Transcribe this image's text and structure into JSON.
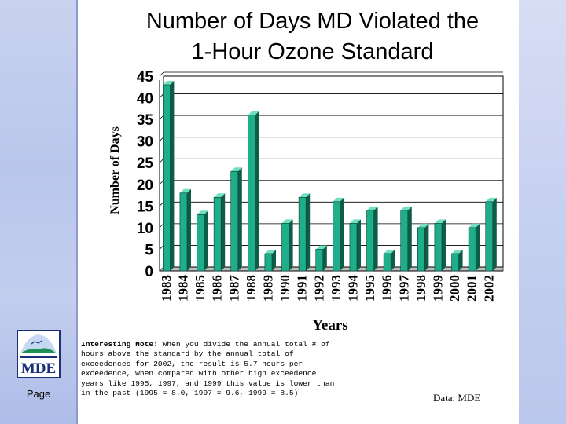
{
  "slide": {
    "page_label": "Page",
    "logo_text": "MDE",
    "source": "Data: MDE",
    "note_heading": "Interesting Note:",
    "note_body": " when you divide the annual total # of hours above the standard by the annual total of exceedences for 2002, the result is 5.7 hours per exceedence, when compared with other high exceedence years like 1995, 1997, and 1999 this value is lower than in the past (1995 = 8.0, 1997 = 9.6, 1999 = 8.5)"
  },
  "chart_data": {
    "type": "bar",
    "title_line1": "Number of Days MD Violated the",
    "title_line2": "1-Hour Ozone Standard",
    "title": "Number of Days MD Violated the 1-Hour Ozone Standard",
    "xlabel": "Years",
    "ylabel": "Number of Days",
    "ylim": [
      0,
      45
    ],
    "yticks": [
      0,
      5,
      10,
      15,
      20,
      25,
      30,
      35,
      40,
      45
    ],
    "grid": true,
    "legend": "none",
    "categories": [
      "1983",
      "1984",
      "1985",
      "1986",
      "1987",
      "1988",
      "1989",
      "1990",
      "1991",
      "1992",
      "1993",
      "1994",
      "1995",
      "1996",
      "1997",
      "1998",
      "1999",
      "2000",
      "2001",
      "2002"
    ],
    "values": [
      43,
      18,
      13,
      17,
      23,
      36,
      4,
      11,
      17,
      5,
      16,
      11,
      14,
      4,
      14,
      10,
      11,
      4,
      10,
      16
    ],
    "bar_color": "#1fae8a",
    "bar_dark": "#0e5c48",
    "bar_light": "#6fe0c0"
  }
}
